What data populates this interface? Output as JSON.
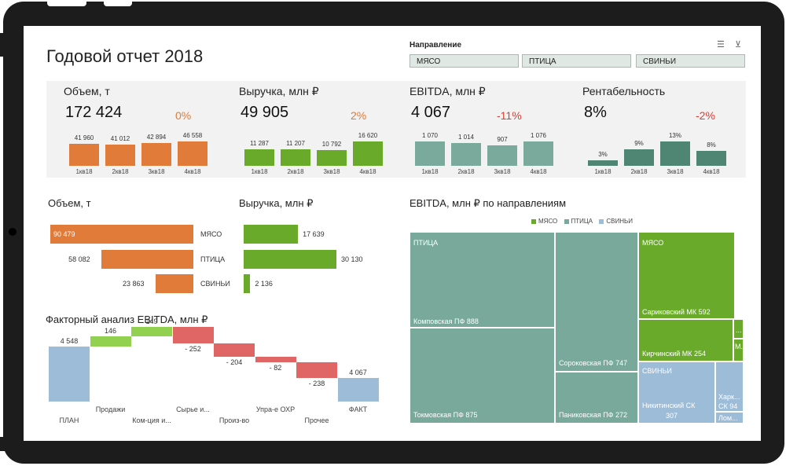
{
  "colors": {
    "meat": "#e07b39",
    "poultry_green": "#6aaa2a",
    "ebitda_teal": "#7aaa9c",
    "rent_teal": "#4e8573",
    "pos": "#e07b39",
    "neg": "#e03c31",
    "wf_up": "#92d050",
    "wf_down": "#e06666",
    "wf_total": "#9dbcd8",
    "meat_tm": "#6aaa2a",
    "bird_tm": "#78a99b",
    "pig_tm": "#9dbcd8"
  },
  "header": {
    "title": "Годовой отчет 2018"
  },
  "slicer": {
    "title": "Направление",
    "items": [
      "МЯСО",
      "ПТИЦА",
      "СВИНЬИ"
    ],
    "icons": [
      "multi-select-icon",
      "clear-filter-icon"
    ]
  },
  "kpis": [
    {
      "label": "Объем, т",
      "value": "172 424",
      "change": "0%",
      "change_color": "pos",
      "quarters": [
        "1кв18",
        "2кв18",
        "3кв18",
        "4кв18"
      ],
      "values": [
        41960,
        41012,
        42894,
        46558
      ],
      "labels": [
        "41 960",
        "41 012",
        "42 894",
        "46 558"
      ],
      "color": "meat"
    },
    {
      "label": "Выручка, млн ₽",
      "value": "49 905",
      "change": "2%",
      "change_color": "pos",
      "quarters": [
        "1кв18",
        "2кв18",
        "3кв18",
        "4кв18"
      ],
      "values": [
        11287,
        11207,
        10792,
        16620
      ],
      "labels": [
        "11 287",
        "11 207",
        "10 792",
        "16 620"
      ],
      "color": "poultry_green"
    },
    {
      "label": "EBITDA, млн ₽",
      "value": "4 067",
      "change": "-11%",
      "change_color": "neg",
      "quarters": [
        "1кв18",
        "2кв18",
        "3кв18",
        "4кв18"
      ],
      "values": [
        1070,
        1014,
        907,
        1076
      ],
      "labels": [
        "1 070",
        "1 014",
        "907",
        "1 076"
      ],
      "color": "ebitda_teal"
    },
    {
      "label": "Рентабельность",
      "value": "8%",
      "change": "-2%",
      "change_color": "neg",
      "quarters": [
        "1кв18",
        "2кв18",
        "3кв18",
        "4кв18"
      ],
      "values": [
        3,
        9,
        13,
        8
      ],
      "labels": [
        "3%",
        "9%",
        "13%",
        "8%"
      ],
      "color": "rent_teal"
    }
  ],
  "volume_by_dir": {
    "title": "Объем, т",
    "categories": [
      "МЯСО",
      "ПТИЦА",
      "СВИНЬИ"
    ],
    "values": [
      90479,
      58082,
      23863
    ],
    "labels": [
      "90 479",
      "58 082",
      "23 863"
    ]
  },
  "revenue_by_dir": {
    "title": "Выручка, млн ₽",
    "values": [
      17639,
      30130,
      2136
    ],
    "labels": [
      "17 639",
      "30 130",
      "2 136"
    ]
  },
  "waterfall": {
    "title": "Факторный анализ EBITDA, млн ₽",
    "steps": [
      {
        "cat": "ПЛАН",
        "label": "4 548",
        "value": 4548,
        "kind": "total"
      },
      {
        "cat": "Продажи",
        "label": "146",
        "value": 146,
        "kind": "up"
      },
      {
        "cat": "Ком-ция и...",
        "label": "149",
        "value": 149,
        "kind": "up"
      },
      {
        "cat": "Сырье и...",
        "label": "- 252",
        "value": -252,
        "kind": "down"
      },
      {
        "cat": "Произ-во",
        "label": "- 204",
        "value": -204,
        "kind": "down"
      },
      {
        "cat": "Упра-е ОХР",
        "label": "- 82",
        "value": -82,
        "kind": "down"
      },
      {
        "cat": "Прочее",
        "label": "- 238",
        "value": -238,
        "kind": "down"
      },
      {
        "cat": "ФАКТ",
        "label": "4 067",
        "value": 4067,
        "kind": "total"
      }
    ]
  },
  "treemap": {
    "title": "EBITDA, млн ₽ по направлениям",
    "legend": [
      "МЯСО",
      "ПТИЦА",
      "СВИНЬИ"
    ],
    "group_labels": {
      "poultry": "ПТИЦА",
      "meat": "МЯСО",
      "pigs": "СВИНЬИ"
    },
    "items": {
      "komp": "Комповская ПФ  888",
      "tokm": "Токмовская ПФ  875",
      "sorok": "Сороковская ПФ  747",
      "panik": "Паниковская ПФ  272",
      "sarik": "Сариковский МК  592",
      "kirch": "Кирчинский МК  254",
      "nikit": "Никитинский СК",
      "nikit_v": "307",
      "khark": "Харк... СК  94",
      "lom": "Лом...",
      "m_small": "М...",
      "dots": "..."
    }
  },
  "chart_data": [
    {
      "type": "bar",
      "categories": [
        "1кв18",
        "2кв18",
        "3кв18",
        "4кв18"
      ],
      "title": "Объем, т",
      "values": [
        41960,
        41012,
        42894,
        46558
      ]
    },
    {
      "type": "bar",
      "categories": [
        "1кв18",
        "2кв18",
        "3кв18",
        "4кв18"
      ],
      "title": "Выручка, млн ₽",
      "values": [
        11287,
        11207,
        10792,
        16620
      ]
    },
    {
      "type": "bar",
      "categories": [
        "1кв18",
        "2кв18",
        "3кв18",
        "4кв18"
      ],
      "title": "EBITDA, млн ₽",
      "values": [
        1070,
        1014,
        907,
        1076
      ]
    },
    {
      "type": "bar",
      "categories": [
        "1кв18",
        "2кв18",
        "3кв18",
        "4кв18"
      ],
      "title": "Рентабельность",
      "values": [
        3,
        9,
        13,
        8
      ]
    },
    {
      "type": "bar",
      "categories": [
        "МЯСО",
        "ПТИЦА",
        "СВИНЬИ"
      ],
      "title": "Объем, т",
      "values": [
        90479,
        58082,
        23863
      ]
    },
    {
      "type": "bar",
      "categories": [
        "МЯСО",
        "ПТИЦА",
        "СВИНЬИ"
      ],
      "title": "Выручка, млн ₽",
      "values": [
        17639,
        30130,
        2136
      ]
    }
  ]
}
